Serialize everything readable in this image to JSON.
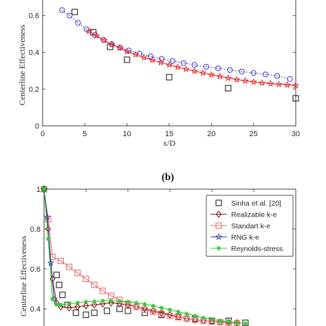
{
  "chart_data": [
    {
      "type": "scatter",
      "panel": "a",
      "ylabel": "Centerline Effectiveness",
      "xlabel": "x/D",
      "xlim": [
        0,
        30
      ],
      "ylim": [
        0,
        0.7
      ],
      "xticks": [
        "0",
        "5",
        "10",
        "15",
        "20",
        "25",
        "30"
      ],
      "yticks": [
        "0",
        "0.2",
        "0.4",
        "0.6"
      ],
      "series": [
        {
          "style": "square-markers",
          "color": "#222222",
          "x": [
            3.8,
            6,
            8,
            10,
            15,
            22,
            30
          ],
          "y": [
            0.62,
            0.51,
            0.43,
            0.36,
            0.265,
            0.205,
            0.15
          ]
        },
        {
          "style": "circles-dotted",
          "color": "#3b3bc8",
          "x": [
            2.3,
            3.2,
            4.2,
            5.2,
            6.2,
            7.2,
            8.2,
            9.2,
            10.2,
            11.5,
            12.8,
            14.1,
            15.4,
            16.7,
            18,
            19.4,
            20.8,
            22.2,
            23.6,
            25,
            26.4,
            27.8,
            29.3
          ],
          "y": [
            0.63,
            0.6,
            0.56,
            0.525,
            0.495,
            0.468,
            0.445,
            0.426,
            0.41,
            0.393,
            0.378,
            0.365,
            0.353,
            0.342,
            0.332,
            0.322,
            0.313,
            0.304,
            0.296,
            0.288,
            0.28,
            0.272,
            0.255
          ]
        },
        {
          "style": "stars-solid",
          "color": "#e02020",
          "x": [
            5.5,
            6.4,
            7.3,
            8.2,
            9.1,
            10,
            11,
            12,
            13,
            14,
            15,
            16,
            17,
            18,
            19,
            20,
            21,
            22,
            23,
            24,
            25,
            26,
            27,
            28,
            29,
            30
          ],
          "y": [
            0.515,
            0.49,
            0.465,
            0.443,
            0.425,
            0.405,
            0.388,
            0.372,
            0.358,
            0.345,
            0.332,
            0.32,
            0.309,
            0.298,
            0.288,
            0.278,
            0.269,
            0.26,
            0.252,
            0.245,
            0.239,
            0.234,
            0.23,
            0.226,
            0.223,
            0.22
          ]
        }
      ]
    },
    {
      "type": "line",
      "panel_label": "(b)",
      "ylabel": "Centerline Effectiveness",
      "ylim": [
        0.3,
        1
      ],
      "yticks": [
        "1",
        "0.8",
        "0.6",
        "0.4"
      ],
      "legend": "top-right",
      "series": [
        {
          "name": "Sinha et al. [20]",
          "marker": "square",
          "line": "none",
          "color": "#222222",
          "x": [
            0,
            1.5,
            1.8,
            2.2,
            2.8,
            3.8,
            5,
            6,
            7.5,
            9,
            10,
            12,
            14,
            16,
            18,
            20,
            22,
            24
          ],
          "y": [
            1.0,
            0.57,
            0.52,
            0.47,
            0.42,
            0.38,
            0.37,
            0.38,
            0.39,
            0.4,
            0.39,
            0.38,
            0.37,
            0.36,
            0.35,
            0.34,
            0.34,
            0.33
          ]
        },
        {
          "name": "Realizable k-e",
          "marker": "diamond",
          "line": "solid",
          "color": "#8b1a1a",
          "x": [
            0,
            0.5,
            1,
            1.5,
            2,
            3,
            4,
            5,
            6,
            7,
            8,
            9,
            10,
            11,
            12,
            13,
            14,
            15,
            16,
            17,
            18,
            19,
            20,
            21,
            22,
            23
          ],
          "y": [
            1.0,
            0.8,
            0.55,
            0.43,
            0.41,
            0.405,
            0.41,
            0.415,
            0.42,
            0.425,
            0.43,
            0.425,
            0.42,
            0.41,
            0.4,
            0.39,
            0.38,
            0.37,
            0.36,
            0.35,
            0.345,
            0.34,
            0.337,
            0.334,
            0.332,
            0.33
          ]
        },
        {
          "name": "Standart k-e",
          "marker": "square",
          "line": "solid",
          "color": "#e07070",
          "x": [
            0,
            0.5,
            1,
            2,
            3,
            4,
            5,
            6,
            7,
            8,
            9,
            10,
            11,
            12,
            13,
            14,
            15,
            16,
            17,
            18,
            19,
            20,
            21,
            22,
            23
          ],
          "y": [
            1.0,
            0.85,
            0.66,
            0.64,
            0.61,
            0.58,
            0.55,
            0.52,
            0.49,
            0.465,
            0.445,
            0.425,
            0.41,
            0.395,
            0.385,
            0.375,
            0.365,
            0.358,
            0.351,
            0.345,
            0.34,
            0.336,
            0.333,
            0.33,
            0.328
          ]
        },
        {
          "name": "RNG k-e",
          "marker": "star",
          "line": "solid",
          "color": "#3a3ab0",
          "x": [
            0,
            0.4,
            0.8,
            1.2
          ],
          "y": [
            1.0,
            0.86,
            0.63,
            0.45
          ]
        },
        {
          "name": "Reynolds-stress",
          "marker": "asterisk",
          "line": "solid",
          "color": "#2ec82e",
          "x": [
            0,
            0.5,
            1,
            1.5,
            2,
            3,
            4,
            5,
            6,
            7,
            8,
            9,
            10,
            11,
            12,
            13,
            14,
            15,
            16,
            17,
            18,
            19,
            20,
            21,
            22,
            23,
            24
          ],
          "y": [
            1.0,
            0.75,
            0.45,
            0.42,
            0.42,
            0.425,
            0.43,
            0.435,
            0.437,
            0.44,
            0.44,
            0.438,
            0.435,
            0.43,
            0.423,
            0.415,
            0.405,
            0.395,
            0.385,
            0.375,
            0.365,
            0.355,
            0.347,
            0.34,
            0.335,
            0.33,
            0.327
          ]
        }
      ]
    }
  ]
}
